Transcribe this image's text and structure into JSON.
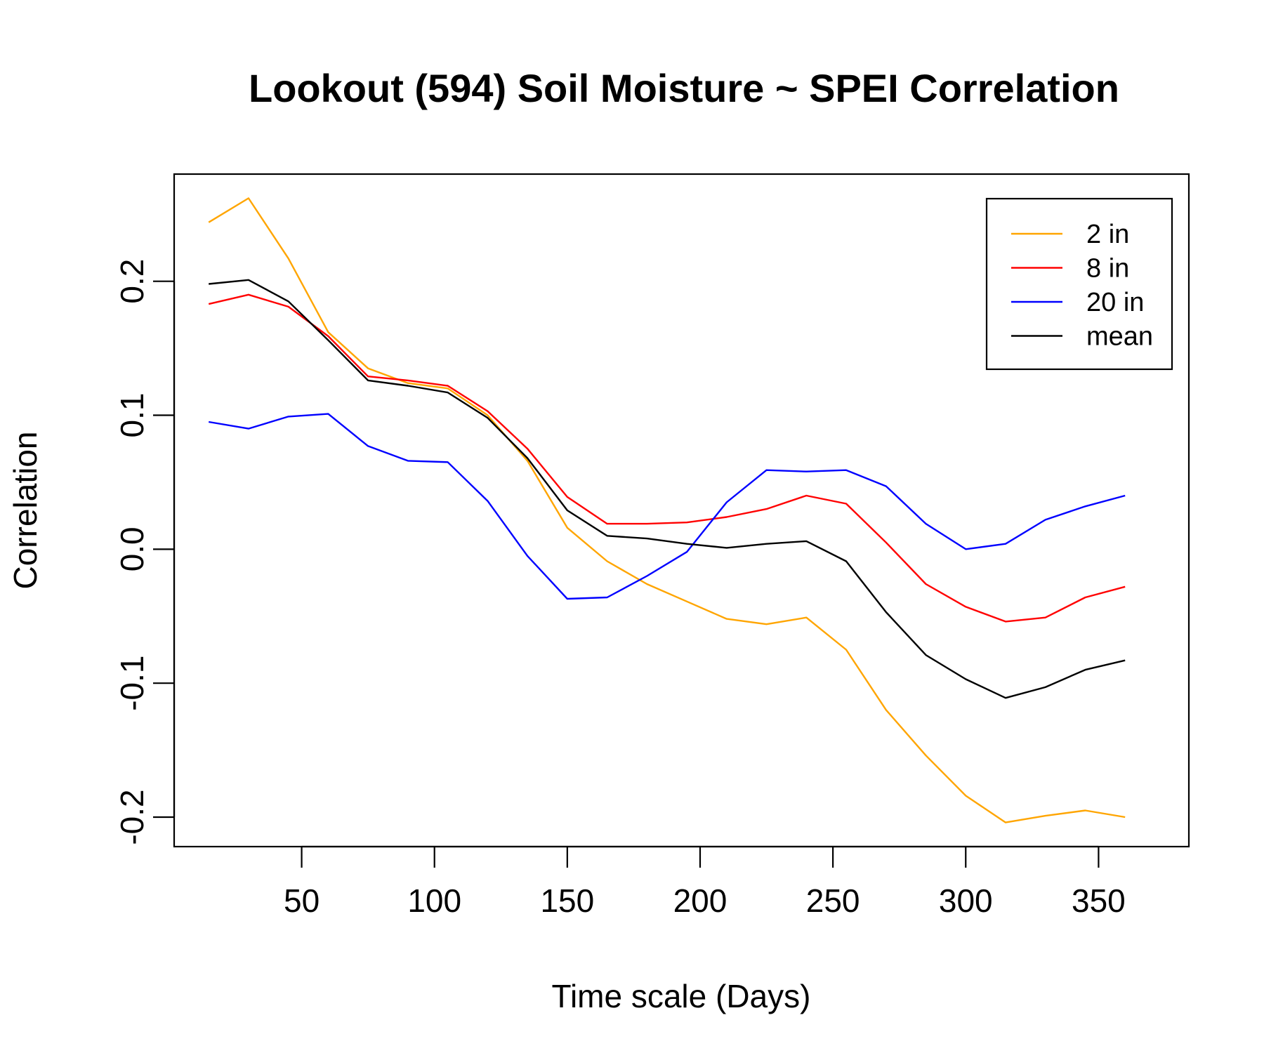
{
  "chart_data": {
    "type": "line",
    "title": "Lookout (594) Soil Moisture ~ SPEI Correlation",
    "xlabel": "Time scale (Days)",
    "ylabel": "Correlation",
    "xlim": [
      2,
      384
    ],
    "ylim": [
      -0.222,
      0.28
    ],
    "x_ticks": [
      50,
      100,
      150,
      200,
      250,
      300,
      350
    ],
    "x_tick_labels": [
      "50",
      "100",
      "150",
      "200",
      "250",
      "300",
      "350"
    ],
    "y_ticks": [
      -0.2,
      -0.1,
      0.0,
      0.1,
      0.2
    ],
    "y_tick_labels": [
      "-0.2",
      "-0.1",
      "0.0",
      "0.1",
      "0.2"
    ],
    "legend_position": "top-right",
    "x": [
      15,
      30,
      45,
      60,
      75,
      90,
      105,
      120,
      135,
      150,
      165,
      180,
      195,
      210,
      225,
      240,
      255,
      270,
      285,
      300,
      315,
      330,
      345,
      360
    ],
    "series": [
      {
        "name": "2 in",
        "color": "#FFA500",
        "values": [
          0.244,
          0.262,
          0.217,
          0.162,
          0.135,
          0.124,
          0.12,
          0.1,
          0.066,
          0.016,
          -0.009,
          -0.026,
          -0.039,
          -0.052,
          -0.056,
          -0.051,
          -0.075,
          -0.12,
          -0.154,
          -0.184,
          -0.204,
          -0.199,
          -0.195,
          -0.2
        ]
      },
      {
        "name": "8 in",
        "color": "#FF0000",
        "values": [
          0.183,
          0.19,
          0.181,
          0.159,
          0.129,
          0.126,
          0.122,
          0.103,
          0.075,
          0.039,
          0.019,
          0.019,
          0.02,
          0.024,
          0.03,
          0.04,
          0.034,
          0.005,
          -0.026,
          -0.043,
          -0.054,
          -0.051,
          -0.036,
          -0.028
        ]
      },
      {
        "name": "20 in",
        "color": "#0000FF",
        "values": [
          0.095,
          0.09,
          0.099,
          0.101,
          0.077,
          0.066,
          0.065,
          0.036,
          -0.005,
          -0.037,
          -0.036,
          -0.02,
          -0.002,
          0.035,
          0.059,
          0.058,
          0.059,
          0.047,
          0.019,
          0.0,
          0.004,
          0.022,
          0.032,
          0.04
        ]
      },
      {
        "name": "mean",
        "color": "#000000",
        "values": [
          0.198,
          0.201,
          0.185,
          0.156,
          0.126,
          0.122,
          0.117,
          0.098,
          0.068,
          0.029,
          0.01,
          0.008,
          0.004,
          0.001,
          0.004,
          0.006,
          -0.009,
          -0.047,
          -0.079,
          -0.097,
          -0.111,
          -0.103,
          -0.09,
          -0.083
        ]
      }
    ]
  }
}
